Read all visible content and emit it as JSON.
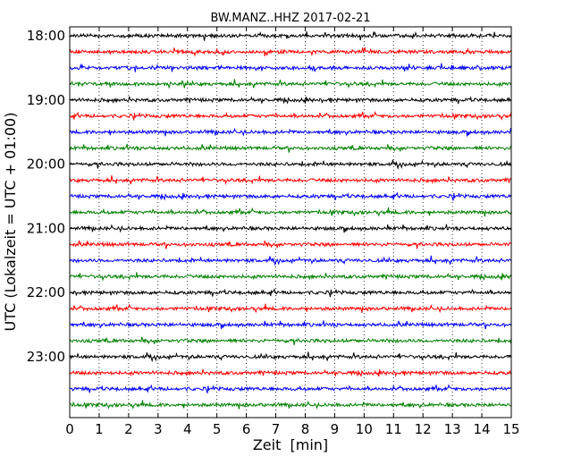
{
  "chart_data": {
    "type": "line",
    "chart_kind": "seismogram dayplot",
    "title": "BW.MANZ..HHZ 2017-02-21",
    "xlabel": "Zeit  [min]",
    "ylabel": "UTC (Lokalzeit = UTC + 01:00)",
    "xlim": [
      0,
      15
    ],
    "x_ticks": [
      0,
      1,
      2,
      3,
      4,
      5,
      6,
      7,
      8,
      9,
      10,
      11,
      12,
      13,
      14,
      15
    ],
    "x_tick_labels": [
      "0",
      "1",
      "2",
      "3",
      "4",
      "5",
      "6",
      "7",
      "8",
      "9",
      "10",
      "11",
      "12",
      "13",
      "14",
      "15"
    ],
    "y_tick_labels": [
      "18:00",
      "19:00",
      "20:00",
      "21:00",
      "22:00",
      "23:00"
    ],
    "minutes_per_row": 15,
    "row_start_times": [
      "18:00",
      "18:15",
      "18:30",
      "18:45",
      "19:00",
      "19:15",
      "19:30",
      "19:45",
      "20:00",
      "20:15",
      "20:30",
      "20:45",
      "21:00",
      "21:15",
      "21:30",
      "21:45",
      "22:00",
      "22:15",
      "22:30",
      "22:45",
      "23:00",
      "23:15",
      "23:30",
      "23:45"
    ],
    "color_cycle": [
      "#000000",
      "#ff0000",
      "#0000ff",
      "#008000"
    ],
    "vertical_grid": "dotted",
    "grid": true
  }
}
